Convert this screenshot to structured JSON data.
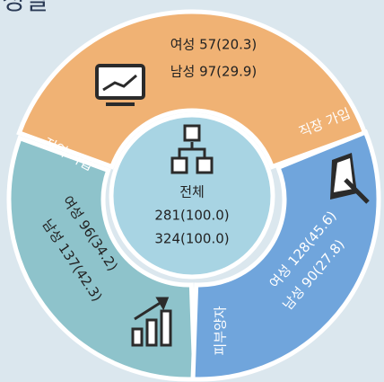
{
  "title": "성별",
  "center": {
    "label": "전체",
    "lines": [
      "281(100.0)",
      "324(100.0)"
    ]
  },
  "segments": [
    {
      "label": "직장 가입",
      "lines": [
        "여성 57(20.3)",
        "남성 97(29.9)"
      ]
    },
    {
      "label": "지역 가입",
      "lines": [
        "여성 96(34.2)",
        "남성 137(42.3)"
      ]
    },
    {
      "label": "피부양자",
      "lines": [
        "여성 128(45.6)",
        "남성 90(27.8)"
      ]
    }
  ]
}
